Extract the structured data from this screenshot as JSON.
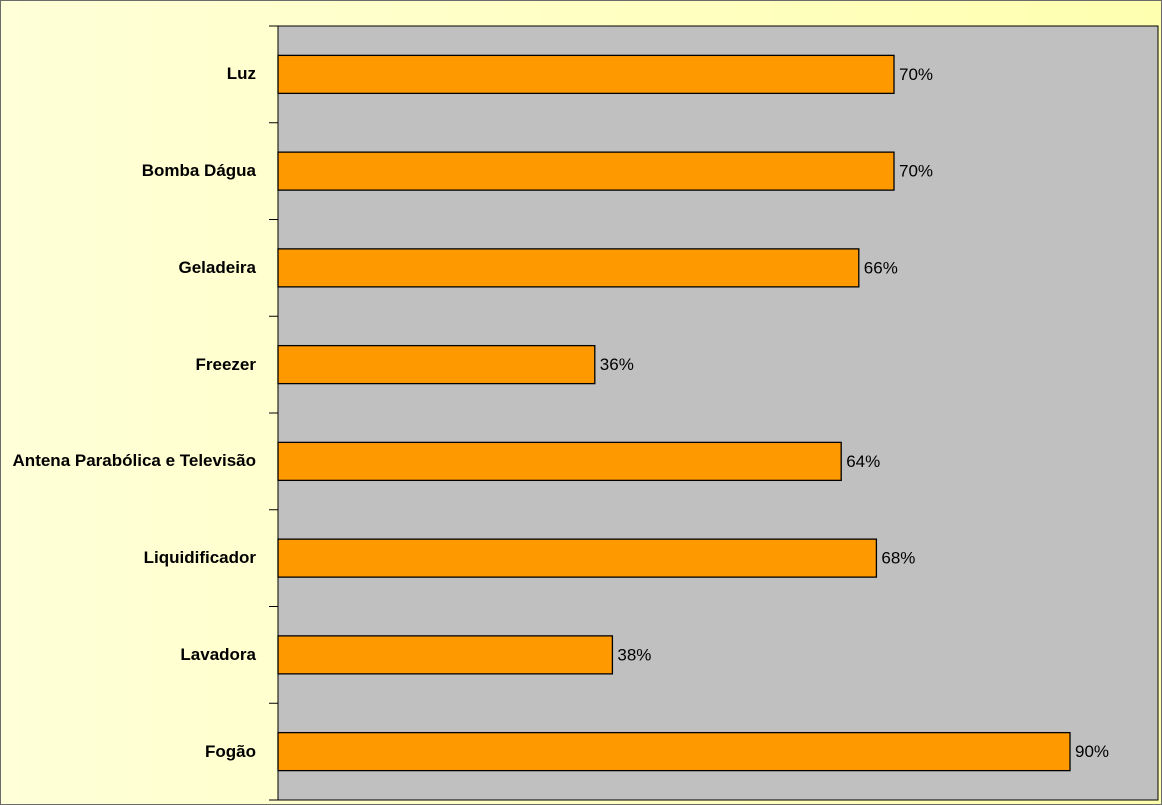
{
  "chart_data": {
    "type": "bar",
    "orientation": "horizontal",
    "categories": [
      "Luz",
      "Bomba Dágua",
      "Geladeira",
      "Freezer",
      "Antena Parabólica e Televisão",
      "Liquidificador",
      "Lavadora",
      "Fogão"
    ],
    "values": [
      70,
      70,
      66,
      36,
      64,
      68,
      38,
      90
    ],
    "value_labels": [
      "70%",
      "70%",
      "66%",
      "36%",
      "64%",
      "68%",
      "38%",
      "90%"
    ],
    "color": "#ff9900",
    "xlim": [
      0,
      100
    ]
  }
}
